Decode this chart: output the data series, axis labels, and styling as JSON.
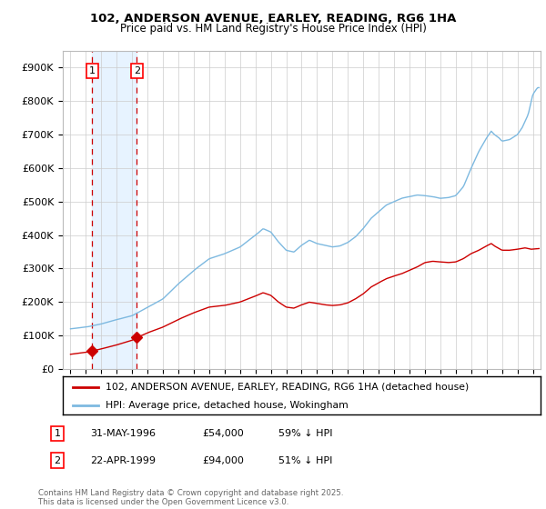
{
  "title": "102, ANDERSON AVENUE, EARLEY, READING, RG6 1HA",
  "subtitle": "Price paid vs. HM Land Registry's House Price Index (HPI)",
  "ylabel_ticks": [
    "£0",
    "£100K",
    "£200K",
    "£300K",
    "£400K",
    "£500K",
    "£600K",
    "£700K",
    "£800K",
    "£900K"
  ],
  "ytick_values": [
    0,
    100000,
    200000,
    300000,
    400000,
    500000,
    600000,
    700000,
    800000,
    900000
  ],
  "ylim": [
    0,
    950000
  ],
  "xlim_start": 1994.5,
  "xlim_end": 2025.5,
  "hpi_color": "#7db9e0",
  "price_color": "#cc0000",
  "sale1_date": 1996.41,
  "sale1_price": 54000,
  "sale2_date": 1999.31,
  "sale2_price": 94000,
  "legend_line1": "102, ANDERSON AVENUE, EARLEY, READING, RG6 1HA (detached house)",
  "legend_line2": "HPI: Average price, detached house, Wokingham",
  "table_row1": [
    "1",
    "31-MAY-1996",
    "£54,000",
    "59% ↓ HPI"
  ],
  "table_row2": [
    "2",
    "22-APR-1999",
    "£94,000",
    "51% ↓ HPI"
  ],
  "footnote": "Contains HM Land Registry data © Crown copyright and database right 2025.\nThis data is licensed under the Open Government Licence v3.0.",
  "shade_color": "#ddeeff",
  "grid_color": "#cccccc",
  "title_fontsize": 9.5,
  "subtitle_fontsize": 8.5
}
